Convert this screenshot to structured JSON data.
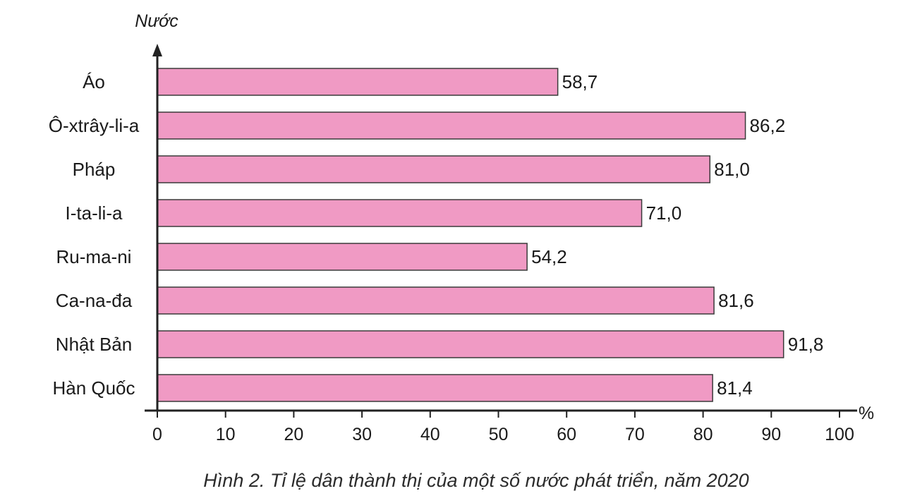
{
  "chart_data": {
    "type": "bar",
    "orientation": "horizontal",
    "ylabel": "Nước",
    "xlabel": "%",
    "categories": [
      "Áo",
      "Ô-xtrây-li-a",
      "Pháp",
      "I-ta-li-a",
      "Ru-ma-ni",
      "Ca-na-đa",
      "Nhật Bản",
      "Hàn Quốc"
    ],
    "values": [
      58.7,
      86.2,
      81.0,
      71.0,
      54.2,
      81.6,
      91.8,
      81.4
    ],
    "value_labels": [
      "58,7",
      "86,2",
      "81,0",
      "71,0",
      "54,2",
      "81,6",
      "91,8",
      "81,4"
    ],
    "xlim": [
      0,
      100
    ],
    "xticks": [
      0,
      10,
      20,
      30,
      40,
      50,
      60,
      70,
      80,
      90,
      100
    ],
    "grid": false,
    "bar_color": "#f09ac4",
    "bar_edge_color": "#3a3a3a"
  },
  "caption": "Hình 2. Tỉ lệ dân thành thị của một số nước phát triển, năm 2020"
}
